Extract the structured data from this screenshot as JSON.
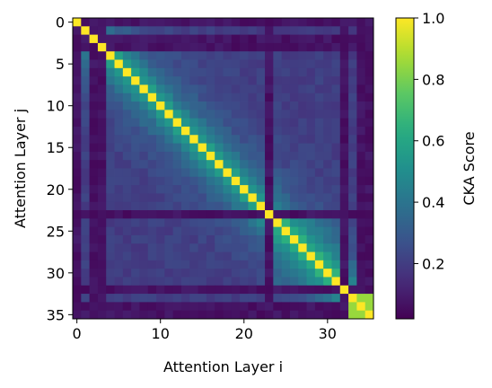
{
  "chart_data": {
    "type": "heatmap",
    "n": 36,
    "xlabel": "Attention Layer i",
    "ylabel": "Attention Layer j",
    "xticks": [
      0,
      10,
      20,
      30
    ],
    "yticks": [
      0,
      5,
      10,
      15,
      20,
      25,
      30,
      35
    ],
    "colorbar": {
      "label": "CKA Score",
      "ticks": [
        0.2,
        0.4,
        0.6,
        0.8,
        1.0
      ],
      "tick_labels": [
        "0.2",
        "0.4",
        "0.6",
        "0.8",
        "1.0"
      ],
      "range": [
        0.02,
        1.0
      ],
      "colormap": "viridis"
    },
    "structure": {
      "diagonal_value": 1.0,
      "near_diagonal_value": 0.55,
      "background_value": 0.2,
      "low_layers": [
        0,
        2,
        3,
        23,
        32,
        34,
        35
      ],
      "low_value": 0.07,
      "final_block": [
        33,
        35
      ],
      "final_block_value": 0.85
    }
  }
}
